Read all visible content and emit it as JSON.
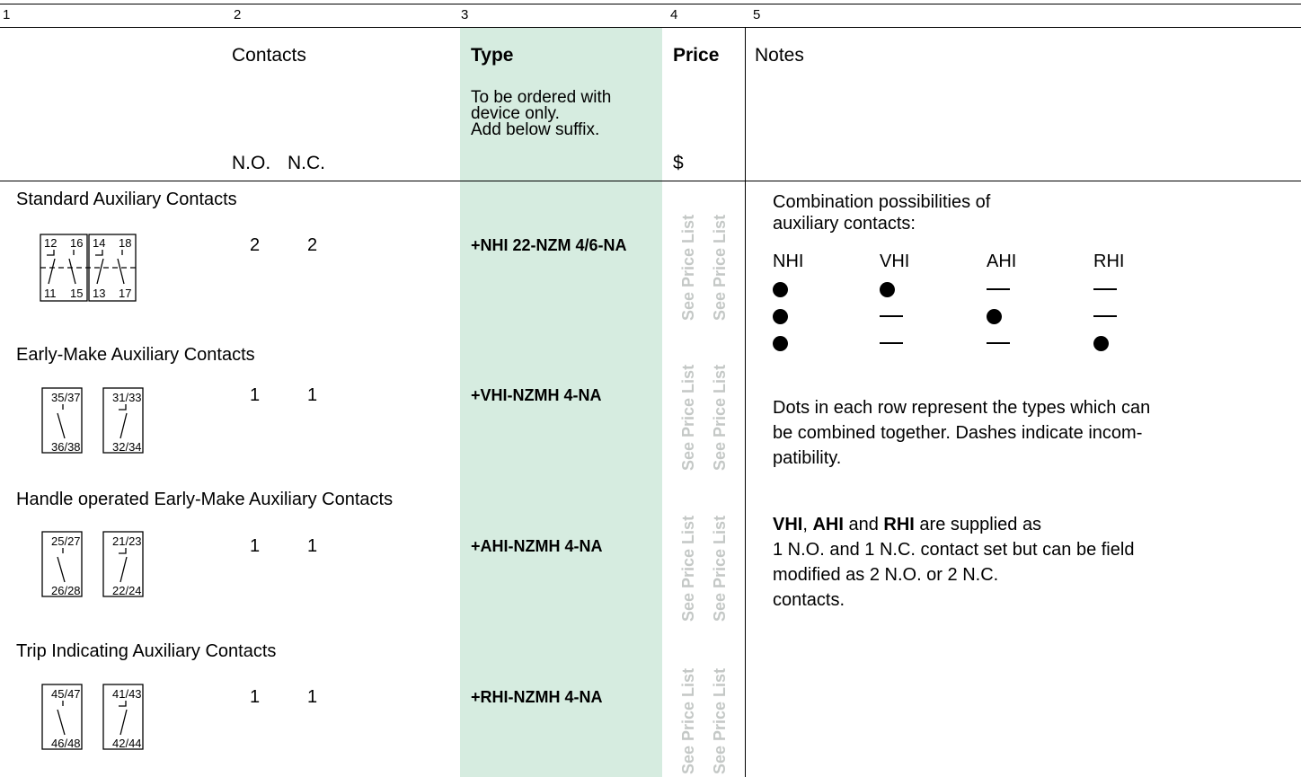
{
  "column_numbers": [
    "1",
    "2",
    "3",
    "4",
    "5"
  ],
  "header": {
    "contacts": "Contacts",
    "type": "Type",
    "type_note_1": "To be ordered with",
    "type_note_2": "device only.",
    "type_note_3": "Add below suffix.",
    "price": "Price",
    "currency": "$",
    "notes": "Notes",
    "no": "N.O.",
    "nc": "N.C."
  },
  "price_placeholder": "See Price List",
  "rows": [
    {
      "category": "Standard Auxiliary Contacts",
      "no": "2",
      "nc": "2",
      "type": "+NHI 22-NZM 4/6-NA",
      "symbol_labels": {
        "t1": "12",
        "t2": "16",
        "t3": "14",
        "t4": "18",
        "b1": "11",
        "b2": "15",
        "b3": "13",
        "b4": "17"
      }
    },
    {
      "category": "Early-Make Auxiliary Contacts",
      "no": "1",
      "nc": "1",
      "type": "+VHI-NZMH 4-NA",
      "symbol_labels": {
        "a_top": "35/37",
        "a_bot": "36/38",
        "b_top": "31/33",
        "b_bot": "32/34"
      }
    },
    {
      "category": "Handle operated Early-Make Auxiliary Contacts",
      "no": "1",
      "nc": "1",
      "type": "+AHI-NZMH 4-NA",
      "symbol_labels": {
        "a_top": "25/27",
        "a_bot": "26/28",
        "b_top": "21/23",
        "b_bot": "22/24"
      }
    },
    {
      "category": "Trip Indicating Auxiliary Contacts",
      "no": "1",
      "nc": "1",
      "type": "+RHI-NZMH 4-NA",
      "symbol_labels": {
        "a_top": "45/47",
        "a_bot": "46/48",
        "b_top": "41/43",
        "b_bot": "42/44"
      }
    }
  ],
  "notes": {
    "combo_line1": "Combination possibilities of",
    "combo_line2": "auxiliary contacts:",
    "combo_headers": [
      "NHI",
      "VHI",
      "AHI",
      "RHI"
    ],
    "combo_rows": [
      [
        "dot",
        "dot",
        "dash",
        "dash"
      ],
      [
        "dot",
        "dash",
        "dot",
        "dash"
      ],
      [
        "dot",
        "dash",
        "dash",
        "dot"
      ]
    ],
    "dots_line1": "Dots in each row represent the types which can",
    "dots_line2": "be combined together. Dashes indicate incom-",
    "dots_line3": "patibility.",
    "supplied_vhi": "VHI",
    "supplied_sep1": ", ",
    "supplied_ahi": "AHI",
    "supplied_and": " and ",
    "supplied_rhi": "RHI",
    "supplied_rest1": " are supplied as",
    "supplied_line2": "1 N.O. and 1 N.C. contact set but can be field",
    "supplied_line3": "modified as 2 N.O. or 2 N.C.",
    "supplied_line4": "contacts."
  }
}
